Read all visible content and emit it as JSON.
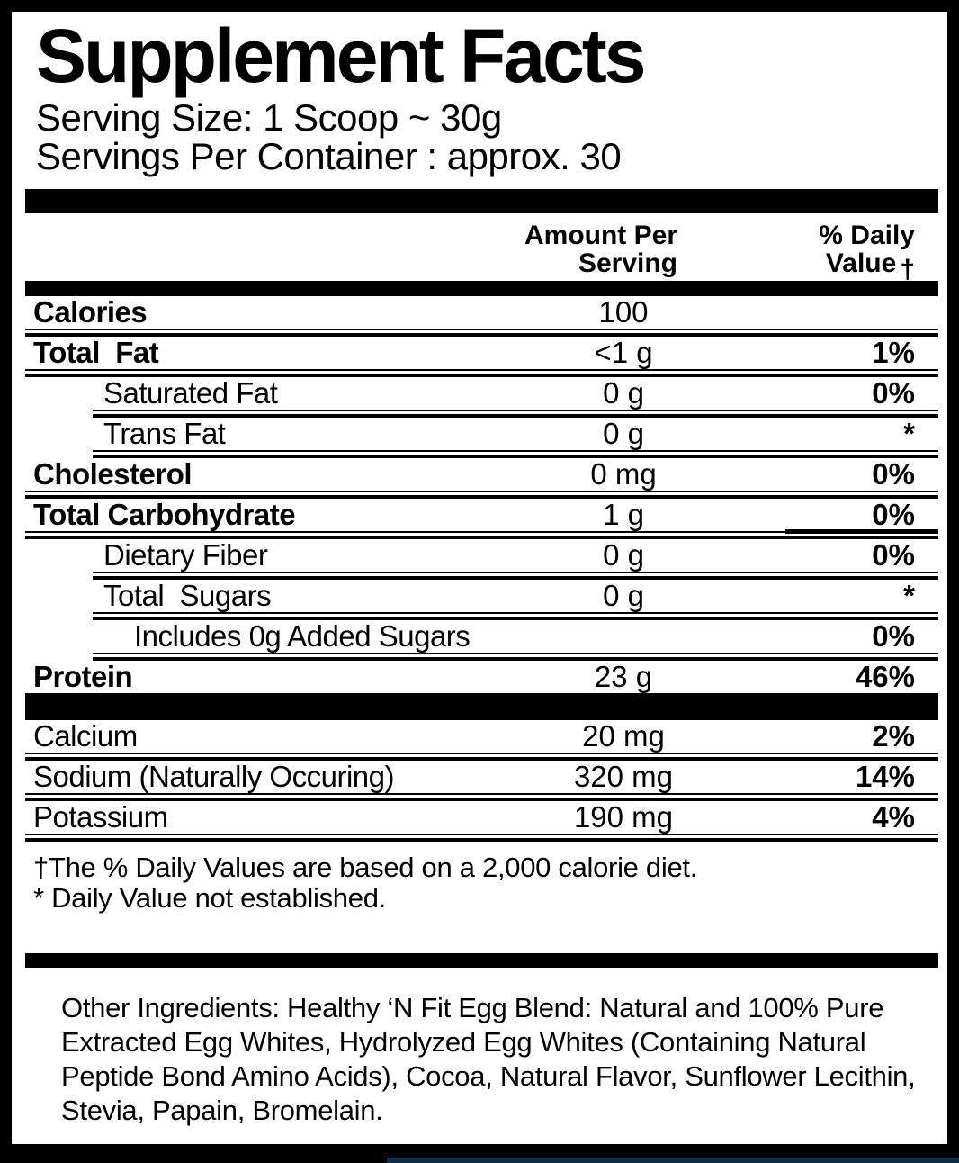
{
  "label": {
    "title": "Supplement Facts",
    "serving_size": "Serving Size: 1 Scoop ~ 30g",
    "servings_per_container": "Servings Per Container : approx. 30",
    "header": {
      "amount_line1": "Amount Per",
      "amount_line2": "Serving",
      "dv_line1": "% Daily",
      "dv_line2": "Value",
      "dagger": "†"
    },
    "rows": [
      {
        "name": "Calories",
        "amount": "100",
        "dv": ""
      },
      {
        "name": "Total  Fat",
        "amount": "<1 g",
        "dv": "1%"
      },
      {
        "name": "Saturated Fat",
        "amount": "0 g",
        "dv": "0%"
      },
      {
        "name": "Trans Fat",
        "amount": "0 g",
        "dv": "*"
      },
      {
        "name": "Cholesterol",
        "amount": "0 mg",
        "dv": "0%"
      },
      {
        "name": "Total Carbohydrate",
        "amount": "1 g",
        "dv": "0%"
      },
      {
        "name": "Dietary Fiber",
        "amount": "0 g",
        "dv": "0%"
      },
      {
        "name": "Total  Sugars",
        "amount": "0 g",
        "dv": "*"
      },
      {
        "name": "Includes 0g Added Sugars",
        "amount": "",
        "dv": "0%"
      },
      {
        "name": "Protein",
        "amount": "23 g",
        "dv": "46%"
      },
      {
        "name": "Calcium",
        "amount": "20 mg",
        "dv": "2%"
      },
      {
        "name": "Sodium (Naturally Occuring)",
        "amount": "320 mg",
        "dv": "14%"
      },
      {
        "name": "Potassium",
        "amount": "190 mg",
        "dv": "4%"
      }
    ],
    "footnotes": [
      "†The % Daily Values are based on a 2,000 calorie diet.",
      "* Daily Value not established."
    ],
    "other_ingredients": "Other Ingredients: Healthy ‘N Fit Egg Blend: Natural and 100% Pure Extracted Egg Whites, Hydrolyzed Egg Whites (Containing Natural Peptide Bond Amino Acids), Cocoa, Natural Flavor, Sunflower Lecithin, Stevia, Papain, Bromelain."
  },
  "colors": {
    "ink": "#000000",
    "paper": "#ffffff",
    "bottom_accent": "#142c42"
  }
}
